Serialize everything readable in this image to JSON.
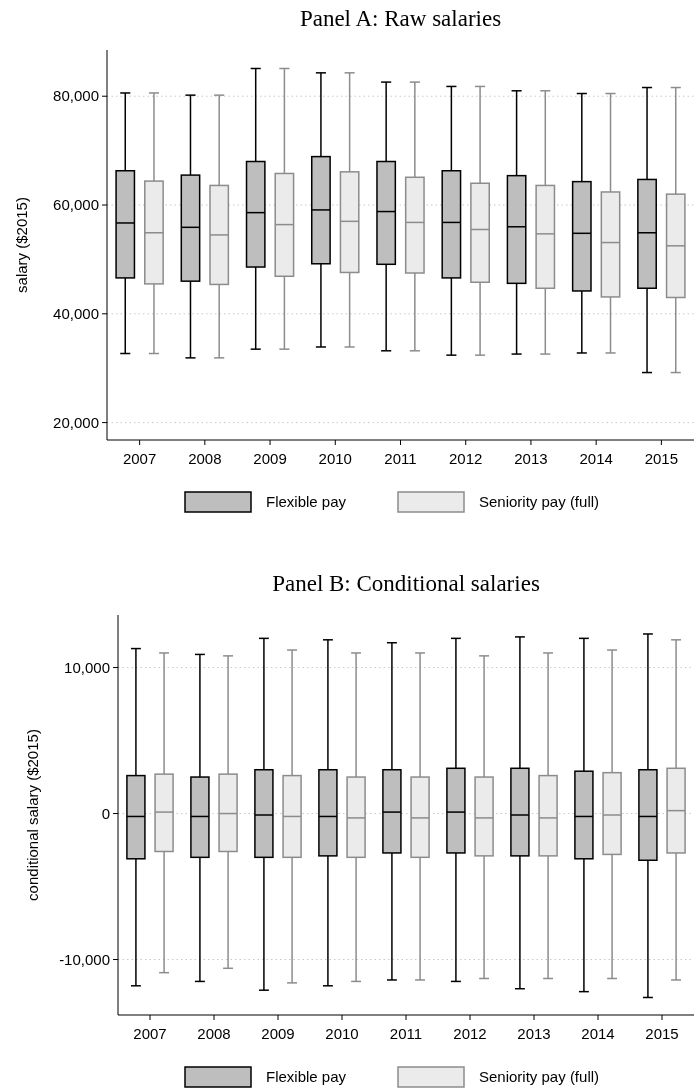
{
  "chart_data": [
    {
      "type": "box",
      "title": "Panel A: Raw salaries",
      "ylabel": "salary ($2015)",
      "categories": [
        "2007",
        "2008",
        "2009",
        "2010",
        "2011",
        "2012",
        "2013",
        "2014",
        "2015"
      ],
      "ylim": [
        16800,
        88500
      ],
      "yticks": [
        {
          "value": 20000,
          "label": "20,000"
        },
        {
          "value": 40000,
          "label": "40,000"
        },
        {
          "value": 60000,
          "label": "60,000"
        },
        {
          "value": 80000,
          "label": "80,000"
        }
      ],
      "grid": "y",
      "legend": "bottom",
      "series": [
        {
          "name": "Flexible pay",
          "color": "#bebebe",
          "boxes": [
            {
              "low": 32700,
              "q1": 46600,
              "median": 56700,
              "q3": 66300,
              "high": 80600
            },
            {
              "low": 31900,
              "q1": 46000,
              "median": 55900,
              "q3": 65500,
              "high": 80200
            },
            {
              "low": 33500,
              "q1": 48600,
              "median": 58600,
              "q3": 68000,
              "high": 85100
            },
            {
              "low": 33900,
              "q1": 49200,
              "median": 59100,
              "q3": 68900,
              "high": 84300
            },
            {
              "low": 33200,
              "q1": 49100,
              "median": 58800,
              "q3": 68000,
              "high": 82600
            },
            {
              "low": 32400,
              "q1": 46600,
              "median": 56800,
              "q3": 66300,
              "high": 81800
            },
            {
              "low": 32600,
              "q1": 45600,
              "median": 56000,
              "q3": 65400,
              "high": 81000
            },
            {
              "low": 32800,
              "q1": 44200,
              "median": 54800,
              "q3": 64300,
              "high": 80500
            },
            {
              "low": 29200,
              "q1": 44700,
              "median": 54900,
              "q3": 64700,
              "high": 81600
            }
          ]
        },
        {
          "name": "Seniority pay (full)",
          "color": "#ebebeb",
          "boxes": [
            {
              "low": 32700,
              "q1": 45500,
              "median": 54900,
              "q3": 64400,
              "high": 80600
            },
            {
              "low": 31900,
              "q1": 45400,
              "median": 54500,
              "q3": 63600,
              "high": 80200
            },
            {
              "low": 33500,
              "q1": 46900,
              "median": 56400,
              "q3": 65800,
              "high": 85100
            },
            {
              "low": 33900,
              "q1": 47600,
              "median": 57000,
              "q3": 66100,
              "high": 84300
            },
            {
              "low": 33200,
              "q1": 47500,
              "median": 56800,
              "q3": 65100,
              "high": 82600
            },
            {
              "low": 32400,
              "q1": 45800,
              "median": 55500,
              "q3": 64000,
              "high": 81800
            },
            {
              "low": 32600,
              "q1": 44700,
              "median": 54700,
              "q3": 63600,
              "high": 81000
            },
            {
              "low": 32800,
              "q1": 43100,
              "median": 53100,
              "q3": 62400,
              "high": 80500
            },
            {
              "low": 29200,
              "q1": 43000,
              "median": 52500,
              "q3": 62000,
              "high": 81600
            }
          ]
        }
      ]
    },
    {
      "type": "box",
      "title": "Panel B: Conditional salaries",
      "ylabel": "conditional salary ($2015)",
      "categories": [
        "2007",
        "2008",
        "2009",
        "2010",
        "2011",
        "2012",
        "2013",
        "2014",
        "2015"
      ],
      "ylim": [
        -13800,
        13600
      ],
      "yticks": [
        {
          "value": -10000,
          "label": "-10,000"
        },
        0,
        {
          "value": 10000,
          "label": "10,000"
        }
      ],
      "grid": "y",
      "legend": "bottom",
      "series": [
        {
          "name": "Flexible pay",
          "color": "#bebebe",
          "boxes": [
            {
              "low": -11800,
              "q1": -3100,
              "median": -200,
              "q3": 2600,
              "high": 11300
            },
            {
              "low": -11500,
              "q1": -3000,
              "median": -200,
              "q3": 2500,
              "high": 10900
            },
            {
              "low": -12100,
              "q1": -3000,
              "median": -100,
              "q3": 3000,
              "high": 12000
            },
            {
              "low": -11800,
              "q1": -2900,
              "median": -200,
              "q3": 3000,
              "high": 11900
            },
            {
              "low": -11400,
              "q1": -2700,
              "median": 100,
              "q3": 3000,
              "high": 11700
            },
            {
              "low": -11500,
              "q1": -2700,
              "median": 100,
              "q3": 3100,
              "high": 12000
            },
            {
              "low": -12000,
              "q1": -2900,
              "median": -100,
              "q3": 3100,
              "high": 12100
            },
            {
              "low": -12200,
              "q1": -3100,
              "median": -200,
              "q3": 2900,
              "high": 12000
            },
            {
              "low": -12600,
              "q1": -3200,
              "median": -200,
              "q3": 3000,
              "high": 12300
            }
          ]
        },
        {
          "name": "Seniority pay (full)",
          "color": "#ebebeb",
          "boxes": [
            {
              "low": -10900,
              "q1": -2600,
              "median": 100,
              "q3": 2700,
              "high": 11000
            },
            {
              "low": -10600,
              "q1": -2600,
              "median": 0,
              "q3": 2700,
              "high": 10800
            },
            {
              "low": -11600,
              "q1": -3000,
              "median": -200,
              "q3": 2600,
              "high": 11200
            },
            {
              "low": -11500,
              "q1": -3000,
              "median": -300,
              "q3": 2500,
              "high": 11000
            },
            {
              "low": -11400,
              "q1": -3000,
              "median": -300,
              "q3": 2500,
              "high": 11000
            },
            {
              "low": -11300,
              "q1": -2900,
              "median": -300,
              "q3": 2500,
              "high": 10800
            },
            {
              "low": -11300,
              "q1": -2900,
              "median": -300,
              "q3": 2600,
              "high": 11000
            },
            {
              "low": -11300,
              "q1": -2800,
              "median": -100,
              "q3": 2800,
              "high": 11200
            },
            {
              "low": -11400,
              "q1": -2700,
              "median": 200,
              "q3": 3100,
              "high": 11900
            }
          ]
        }
      ]
    }
  ]
}
